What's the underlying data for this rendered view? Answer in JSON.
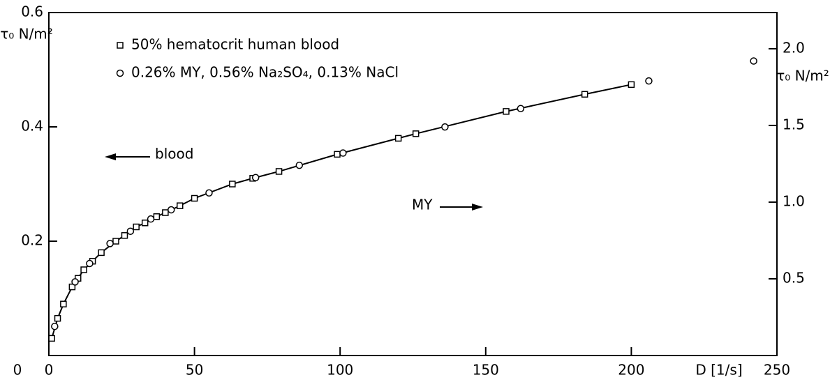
{
  "chart_data": {
    "type": "scatter",
    "ylabel": "τ₀ N/m²",
    "y2label": "τ₀ N/m²",
    "xlabel": "D [1/s]",
    "annotations": [
      "blood",
      "MY"
    ],
    "xlim": [
      0,
      250
    ],
    "xticks": [
      0,
      50,
      100,
      150,
      200,
      250
    ],
    "ylim": [
      0,
      0.6
    ],
    "yticks": [
      0.2,
      0.4,
      0.6
    ],
    "y2lim": [
      0,
      2.236
    ],
    "y2ticks": [
      {
        "value": 0.5,
        "label": "0.5"
      },
      {
        "value": 1,
        "label": "1.0"
      },
      {
        "value": 1.5,
        "label": "1.5"
      },
      {
        "value": 2,
        "label": "2.0"
      }
    ],
    "series": [
      {
        "name": "50% hematocrit human blood",
        "color": "#000000",
        "marker": "square",
        "x": [
          1,
          3,
          5,
          8,
          10,
          12,
          15,
          18,
          23,
          26,
          30,
          33,
          37,
          40,
          45,
          50,
          63,
          70,
          79,
          99,
          120,
          126,
          157,
          184,
          200
        ],
        "values": [
          0.03,
          0.065,
          0.09,
          0.12,
          0.135,
          0.15,
          0.165,
          0.18,
          0.2,
          0.21,
          0.225,
          0.232,
          0.243,
          0.25,
          0.262,
          0.275,
          0.3,
          0.31,
          0.322,
          0.352,
          0.38,
          0.388,
          0.427,
          0.457,
          0.474
        ]
      },
      {
        "name": "0.26% MY, 0.56% Na₂SO₄, 0.13% NaCl",
        "color": "#000000",
        "marker": "circle",
        "axis": "y2",
        "x": [
          2,
          9,
          14,
          21,
          28,
          35,
          42,
          55,
          71,
          86,
          101,
          136,
          162,
          206,
          242
        ],
        "values": [
          0.19,
          0.48,
          0.6,
          0.73,
          0.81,
          0.89,
          0.95,
          1.06,
          1.16,
          1.24,
          1.32,
          1.49,
          1.61,
          1.79,
          1.92
        ]
      }
    ]
  }
}
